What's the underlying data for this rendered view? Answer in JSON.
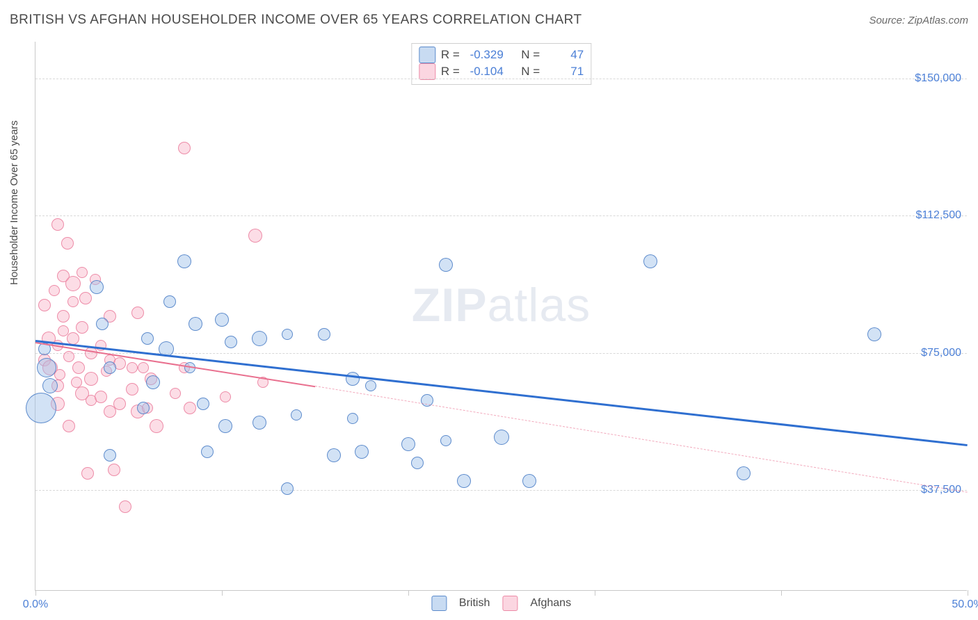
{
  "title": "BRITISH VS AFGHAN HOUSEHOLDER INCOME OVER 65 YEARS CORRELATION CHART",
  "source": "Source: ZipAtlas.com",
  "watermark_bold": "ZIP",
  "watermark_rest": "atlas",
  "yaxis_title": "Householder Income Over 65 years",
  "chart": {
    "type": "scatter",
    "xlim": [
      0,
      50
    ],
    "ylim": [
      10000,
      160000
    ],
    "x_ticks": [
      0,
      10,
      20,
      30,
      40,
      50
    ],
    "x_tick_labels": {
      "0": "0.0%",
      "50": "50.0%"
    },
    "y_gridlines": [
      37500,
      75000,
      112500,
      150000
    ],
    "y_tick_labels": {
      "37500": "$37,500",
      "75000": "$75,000",
      "112500": "$112,500",
      "150000": "$150,000"
    },
    "background_color": "#ffffff",
    "grid_color": "#d8d8d8",
    "axis_color": "#c9c9c9",
    "tick_label_color": "#4b7fd6",
    "title_fontsize": 19,
    "label_fontsize": 16
  },
  "series": {
    "british": {
      "label": "British",
      "color_fill": "rgba(155,190,232,0.45)",
      "color_stroke": "rgba(80,130,200,0.9)",
      "trend_color": "#2f6fd0",
      "trend_width": 3,
      "R": "-0.329",
      "N": "47",
      "trend": {
        "x1": 0,
        "y1": 78500,
        "x2": 50,
        "y2": 50000
      },
      "points": [
        {
          "x": 0.3,
          "y": 60000,
          "r": 22
        },
        {
          "x": 0.6,
          "y": 71000,
          "r": 14
        },
        {
          "x": 0.5,
          "y": 76000,
          "r": 9
        },
        {
          "x": 0.8,
          "y": 66000,
          "r": 11
        },
        {
          "x": 3.3,
          "y": 93000,
          "r": 10
        },
        {
          "x": 3.6,
          "y": 83000,
          "r": 9
        },
        {
          "x": 4.0,
          "y": 71000,
          "r": 9
        },
        {
          "x": 4.0,
          "y": 47000,
          "r": 9
        },
        {
          "x": 5.8,
          "y": 60000,
          "r": 9
        },
        {
          "x": 6.0,
          "y": 79000,
          "r": 9
        },
        {
          "x": 6.3,
          "y": 67000,
          "r": 10
        },
        {
          "x": 7.0,
          "y": 76000,
          "r": 11
        },
        {
          "x": 7.2,
          "y": 89000,
          "r": 9
        },
        {
          "x": 8.0,
          "y": 100000,
          "r": 10
        },
        {
          "x": 8.3,
          "y": 71000,
          "r": 8
        },
        {
          "x": 8.6,
          "y": 83000,
          "r": 10
        },
        {
          "x": 9.0,
          "y": 61000,
          "r": 9
        },
        {
          "x": 9.2,
          "y": 48000,
          "r": 9
        },
        {
          "x": 10.0,
          "y": 84000,
          "r": 10
        },
        {
          "x": 10.2,
          "y": 55000,
          "r": 10
        },
        {
          "x": 10.5,
          "y": 78000,
          "r": 9
        },
        {
          "x": 12.0,
          "y": 79000,
          "r": 11
        },
        {
          "x": 12.0,
          "y": 56000,
          "r": 10
        },
        {
          "x": 13.5,
          "y": 80000,
          "r": 8
        },
        {
          "x": 13.5,
          "y": 38000,
          "r": 9
        },
        {
          "x": 14.0,
          "y": 58000,
          "r": 8
        },
        {
          "x": 15.5,
          "y": 80000,
          "r": 9
        },
        {
          "x": 16.0,
          "y": 47000,
          "r": 10
        },
        {
          "x": 17.0,
          "y": 68000,
          "r": 10
        },
        {
          "x": 17.0,
          "y": 57000,
          "r": 8
        },
        {
          "x": 17.5,
          "y": 48000,
          "r": 10
        },
        {
          "x": 18.0,
          "y": 66000,
          "r": 8
        },
        {
          "x": 20.0,
          "y": 50000,
          "r": 10
        },
        {
          "x": 20.5,
          "y": 45000,
          "r": 9
        },
        {
          "x": 21.0,
          "y": 62000,
          "r": 9
        },
        {
          "x": 22.0,
          "y": 99000,
          "r": 10
        },
        {
          "x": 22.0,
          "y": 51000,
          "r": 8
        },
        {
          "x": 23.0,
          "y": 40000,
          "r": 10
        },
        {
          "x": 25.0,
          "y": 52000,
          "r": 11
        },
        {
          "x": 26.5,
          "y": 40000,
          "r": 10
        },
        {
          "x": 33.0,
          "y": 100000,
          "r": 10
        },
        {
          "x": 38.0,
          "y": 42000,
          "r": 10
        },
        {
          "x": 45.0,
          "y": 80000,
          "r": 10
        }
      ]
    },
    "afghans": {
      "label": "Afghans",
      "color_fill": "rgba(248,180,200,0.45)",
      "color_stroke": "rgba(235,130,160,0.9)",
      "trend_color": "#e9708f",
      "trend_width": 2.5,
      "R": "-0.104",
      "N": "71",
      "trend_solid": {
        "x1": 0,
        "y1": 78000,
        "x2": 15,
        "y2": 66000
      },
      "trend_dash": {
        "x1": 15,
        "y1": 66000,
        "x2": 50,
        "y2": 37000
      },
      "points": [
        {
          "x": 0.5,
          "y": 88000,
          "r": 9
        },
        {
          "x": 0.5,
          "y": 73000,
          "r": 9
        },
        {
          "x": 0.7,
          "y": 79000,
          "r": 10
        },
        {
          "x": 0.8,
          "y": 71000,
          "r": 11
        },
        {
          "x": 1.0,
          "y": 92000,
          "r": 8
        },
        {
          "x": 1.2,
          "y": 110000,
          "r": 9
        },
        {
          "x": 1.2,
          "y": 77000,
          "r": 8
        },
        {
          "x": 1.2,
          "y": 66000,
          "r": 9
        },
        {
          "x": 1.2,
          "y": 61000,
          "r": 10
        },
        {
          "x": 1.3,
          "y": 69000,
          "r": 8
        },
        {
          "x": 1.5,
          "y": 96000,
          "r": 9
        },
        {
          "x": 1.5,
          "y": 85000,
          "r": 9
        },
        {
          "x": 1.5,
          "y": 81000,
          "r": 8
        },
        {
          "x": 1.7,
          "y": 105000,
          "r": 9
        },
        {
          "x": 1.8,
          "y": 74000,
          "r": 8
        },
        {
          "x": 1.8,
          "y": 55000,
          "r": 9
        },
        {
          "x": 2.0,
          "y": 94000,
          "r": 11
        },
        {
          "x": 2.0,
          "y": 89000,
          "r": 8
        },
        {
          "x": 2.0,
          "y": 79000,
          "r": 9
        },
        {
          "x": 2.2,
          "y": 67000,
          "r": 8
        },
        {
          "x": 2.3,
          "y": 71000,
          "r": 9
        },
        {
          "x": 2.5,
          "y": 97000,
          "r": 8
        },
        {
          "x": 2.5,
          "y": 82000,
          "r": 9
        },
        {
          "x": 2.5,
          "y": 64000,
          "r": 10
        },
        {
          "x": 2.7,
          "y": 90000,
          "r": 9
        },
        {
          "x": 2.8,
          "y": 42000,
          "r": 9
        },
        {
          "x": 3.0,
          "y": 75000,
          "r": 9
        },
        {
          "x": 3.0,
          "y": 68000,
          "r": 10
        },
        {
          "x": 3.0,
          "y": 62000,
          "r": 8
        },
        {
          "x": 3.2,
          "y": 95000,
          "r": 8
        },
        {
          "x": 3.5,
          "y": 77000,
          "r": 8
        },
        {
          "x": 3.5,
          "y": 63000,
          "r": 9
        },
        {
          "x": 3.8,
          "y": 70000,
          "r": 8
        },
        {
          "x": 4.0,
          "y": 85000,
          "r": 9
        },
        {
          "x": 4.0,
          "y": 73000,
          "r": 8
        },
        {
          "x": 4.0,
          "y": 59000,
          "r": 9
        },
        {
          "x": 4.2,
          "y": 43000,
          "r": 9
        },
        {
          "x": 4.5,
          "y": 72000,
          "r": 9
        },
        {
          "x": 4.5,
          "y": 61000,
          "r": 9
        },
        {
          "x": 4.8,
          "y": 33000,
          "r": 9
        },
        {
          "x": 5.2,
          "y": 71000,
          "r": 8
        },
        {
          "x": 5.2,
          "y": 65000,
          "r": 9
        },
        {
          "x": 5.5,
          "y": 86000,
          "r": 9
        },
        {
          "x": 5.5,
          "y": 59000,
          "r": 10
        },
        {
          "x": 5.8,
          "y": 71000,
          "r": 8
        },
        {
          "x": 6.0,
          "y": 60000,
          "r": 8
        },
        {
          "x": 6.2,
          "y": 68000,
          "r": 9
        },
        {
          "x": 6.5,
          "y": 55000,
          "r": 10
        },
        {
          "x": 7.5,
          "y": 64000,
          "r": 8
        },
        {
          "x": 8.0,
          "y": 71000,
          "r": 8
        },
        {
          "x": 8.0,
          "y": 131000,
          "r": 9
        },
        {
          "x": 8.3,
          "y": 60000,
          "r": 9
        },
        {
          "x": 10.2,
          "y": 63000,
          "r": 8
        },
        {
          "x": 11.8,
          "y": 107000,
          "r": 10
        },
        {
          "x": 12.2,
          "y": 67000,
          "r": 8
        }
      ]
    }
  },
  "stats_box": {
    "rows": [
      {
        "swatch": "blue",
        "R_label": "R =",
        "R": "-0.329",
        "N_label": "N =",
        "N": "47"
      },
      {
        "swatch": "pink",
        "R_label": "R =",
        "R": "-0.104",
        "N_label": "N =",
        "71": "71",
        "Nv": "71"
      }
    ]
  },
  "legend": [
    {
      "swatch": "blue",
      "label": "British"
    },
    {
      "swatch": "pink",
      "label": "Afghans"
    }
  ]
}
